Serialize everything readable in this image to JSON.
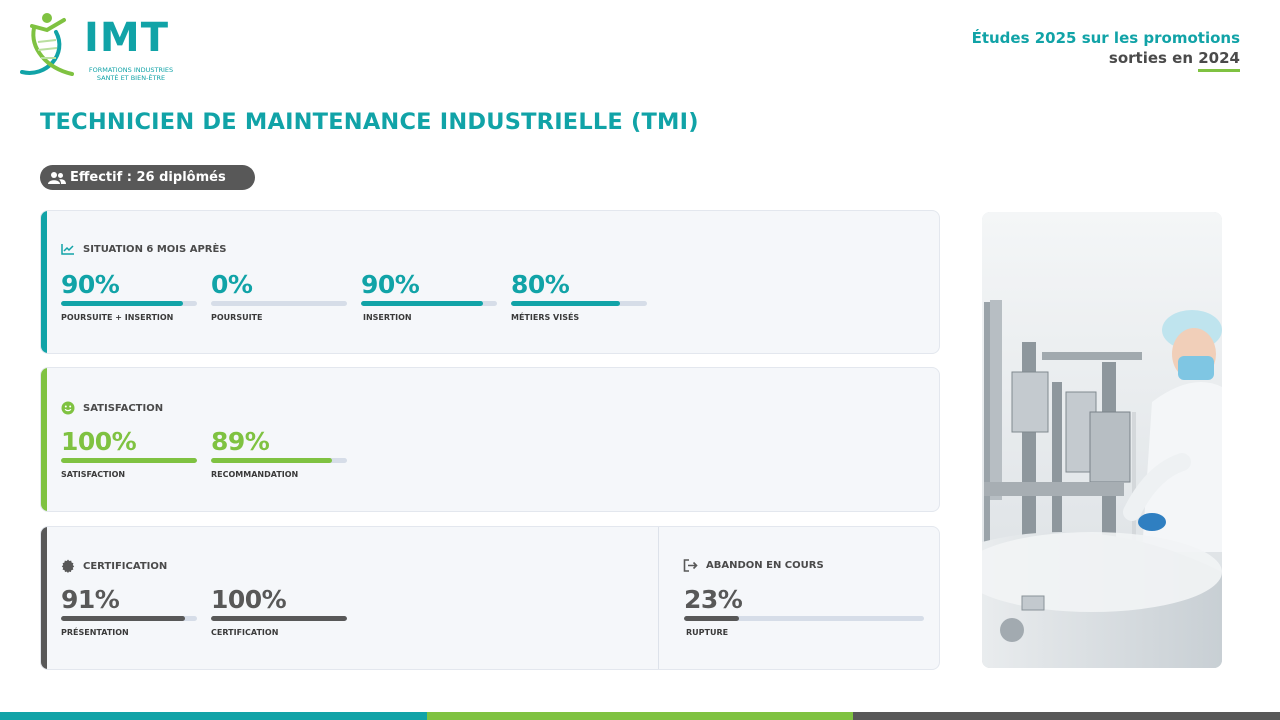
{
  "brand": {
    "name": "IMT",
    "tagline_line1": "FORMATIONS INDUSTRIES",
    "tagline_line2": "SANTÉ ET BIEN-ÊTRE"
  },
  "header": {
    "line1": "Études 2025 sur les promotions",
    "line2_prefix": "sorties en ",
    "line2_year": "2024"
  },
  "title": "TECHNICIEN DE MAINTENANCE INDUSTRIELLE (TMI)",
  "effectif": {
    "label": "Effectif : 26 diplômés",
    "icon": "users-icon"
  },
  "colors": {
    "teal": "#11a3a7",
    "green": "#7fc241",
    "grey": "#585858",
    "track": "#d6dde8"
  },
  "situation": {
    "title": "SITUATION 6 MOIS APRÈS",
    "icon": "line-chart-icon",
    "metrics": [
      {
        "value": "90%",
        "pct": 90,
        "label": "POURSUITE + INSERTION"
      },
      {
        "value": "0%",
        "pct": 0,
        "label": "POURSUITE"
      },
      {
        "value": "90%",
        "pct": 90,
        "label": "INSERTION"
      },
      {
        "value": "80%",
        "pct": 80,
        "label": "MÉTIERS VISÉS"
      }
    ]
  },
  "satisfaction": {
    "title": "SATISFACTION",
    "icon": "smile-icon",
    "metrics": [
      {
        "value": "100%",
        "pct": 100,
        "label": "SATISFACTION"
      },
      {
        "value": "89%",
        "pct": 89,
        "label": "RECOMMANDATION"
      }
    ]
  },
  "certification": {
    "title": "CERTIFICATION",
    "icon": "certificate-badge-icon",
    "metrics": [
      {
        "value": "91%",
        "pct": 91,
        "label": "PRÉSENTATION"
      },
      {
        "value": "100%",
        "pct": 100,
        "label": "CERTIFICATION"
      }
    ]
  },
  "abandon": {
    "title": "ABANDON EN COURS",
    "icon": "exit-icon",
    "metrics": [
      {
        "value": "23%",
        "pct": 23,
        "label": "RUPTURE"
      }
    ]
  },
  "photo": {
    "icon": "technician-photo"
  }
}
